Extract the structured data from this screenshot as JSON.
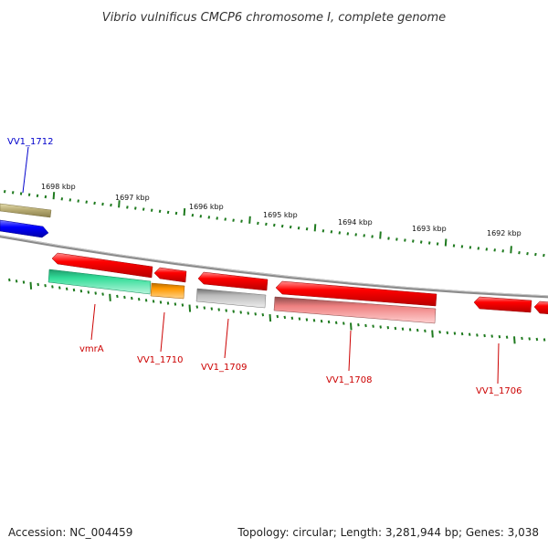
{
  "title": "Vibrio vulnificus CMCP6 chromosome I, complete genome",
  "footer": {
    "accession": "Accession: NC_004459",
    "summary": "Topology: circular; Length: 3,281,944 bp; Genes: 3,038"
  },
  "kbp_labels": [
    "1698 kbp",
    "1697 kbp",
    "1696 kbp",
    "1695 kbp",
    "1694 kbp",
    "1693 kbp",
    "1692 kbp"
  ],
  "gene_labels": [
    "VV1_1712",
    "vmrA",
    "VV1_1710",
    "VV1_1709",
    "VV1_1708",
    "VV1_1706"
  ],
  "colors": {
    "backbone": "#808080",
    "tick": "#1e7a1e",
    "cds_strand": "#ff0000",
    "gene_strand_plus": "#a89c5c",
    "blue_gene": "#0000ff",
    "green_gene": "#33dd99",
    "orange_gene": "#ff9900",
    "grey_gene": "#bbbbbb",
    "pink_gene": "#ee8080",
    "label_red": "#cc0000",
    "label_blue": "#0000cc"
  }
}
